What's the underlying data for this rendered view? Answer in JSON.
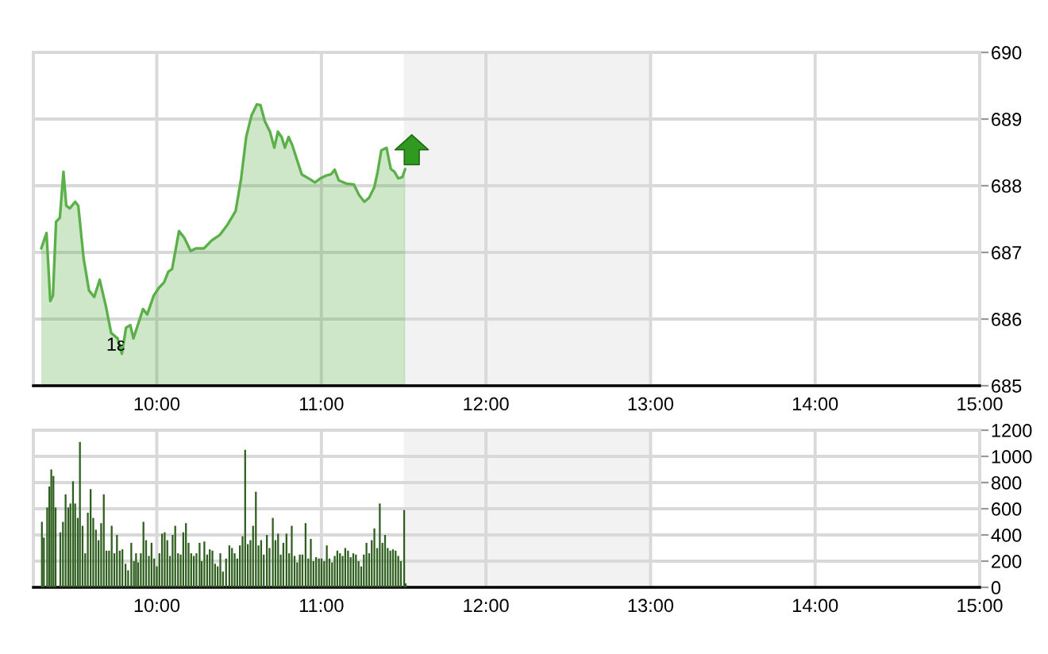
{
  "chart_data": [
    {
      "type": "area",
      "color": "#5cb04a",
      "x": [
        9.298,
        9.33,
        9.353,
        9.369,
        9.388,
        9.411,
        9.433,
        9.45,
        9.472,
        9.504,
        9.523,
        9.556,
        9.588,
        9.62,
        9.653,
        9.691,
        9.723,
        9.762,
        9.788,
        9.813,
        9.839,
        9.858,
        9.89,
        9.916,
        9.942,
        9.981,
        10.013,
        10.044,
        10.07,
        10.093,
        10.135,
        10.167,
        10.206,
        10.237,
        10.286,
        10.334,
        10.382,
        10.431,
        10.479,
        10.512,
        10.543,
        10.575,
        10.608,
        10.63,
        10.656,
        10.688,
        10.714,
        10.736,
        10.759,
        10.778,
        10.801,
        10.823,
        10.849,
        10.881,
        10.929,
        10.961,
        10.994,
        11.026,
        11.058,
        11.081,
        11.106,
        11.154,
        11.197,
        11.229,
        11.261,
        11.29,
        11.322,
        11.342,
        11.364,
        11.396,
        11.422,
        11.444,
        11.467,
        11.492,
        11.509
      ],
      "values": [
        687.06,
        687.29,
        686.27,
        686.35,
        687.46,
        687.52,
        688.21,
        687.7,
        687.66,
        687.76,
        687.7,
        686.9,
        686.43,
        686.33,
        686.59,
        686.19,
        685.79,
        685.71,
        685.48,
        685.87,
        685.91,
        685.71,
        685.95,
        686.15,
        686.07,
        686.35,
        686.47,
        686.55,
        686.71,
        686.75,
        687.32,
        687.22,
        687.02,
        687.06,
        687.06,
        687.18,
        687.26,
        687.42,
        687.62,
        688.1,
        688.73,
        689.05,
        689.22,
        689.21,
        688.97,
        688.81,
        688.57,
        688.81,
        688.73,
        688.57,
        688.73,
        688.61,
        688.41,
        688.17,
        688.1,
        688.05,
        688.11,
        688.15,
        688.17,
        688.24,
        688.08,
        688.03,
        688.02,
        687.86,
        687.76,
        687.82,
        687.98,
        688.21,
        688.53,
        688.57,
        688.25,
        688.21,
        688.11,
        688.13,
        688.25
      ],
      "xlim": [
        9.25,
        15
      ],
      "xticks": [
        {
          "value": 10,
          "label": "10:00"
        },
        {
          "value": 11,
          "label": "11:00"
        },
        {
          "value": 12,
          "label": "12:00"
        },
        {
          "value": 13,
          "label": "13:00"
        },
        {
          "value": 14,
          "label": "14:00"
        },
        {
          "value": 15,
          "label": "15:00"
        }
      ],
      "ylim": [
        685,
        690
      ],
      "yticks": [
        685,
        686,
        687,
        688,
        689,
        690
      ],
      "grid": true,
      "bands": [
        {
          "axis": "x",
          "from": 11.5,
          "to": 13,
          "color": "#f2f2f2"
        }
      ],
      "annotations": [
        {
          "text": "1ε",
          "x": 9.75,
          "y": 685.6
        }
      ]
    },
    {
      "type": "bar",
      "color": "#2f5f1f",
      "x": [
        9.302,
        9.314,
        9.334,
        9.347,
        9.359,
        9.372,
        9.385,
        9.414,
        9.43,
        9.446,
        9.462,
        9.475,
        9.491,
        9.504,
        9.52,
        9.533,
        9.549,
        9.565,
        9.581,
        9.598,
        9.614,
        9.63,
        9.646,
        9.662,
        9.678,
        9.694,
        9.71,
        9.726,
        9.742,
        9.758,
        9.775,
        9.791,
        9.81,
        9.826,
        9.845,
        9.861,
        9.874,
        9.887,
        9.903,
        9.919,
        9.935,
        9.952,
        9.968,
        9.984,
        10.0,
        10.016,
        10.032,
        10.048,
        10.064,
        10.08,
        10.096,
        10.112,
        10.129,
        10.145,
        10.161,
        10.177,
        10.193,
        10.209,
        10.225,
        10.241,
        10.26,
        10.273,
        10.289,
        10.306,
        10.322,
        10.338,
        10.354,
        10.37,
        10.386,
        10.402,
        10.421,
        10.441,
        10.457,
        10.473,
        10.489,
        10.505,
        10.521,
        10.537,
        10.553,
        10.569,
        10.585,
        10.602,
        10.618,
        10.634,
        10.65,
        10.669,
        10.685,
        10.705,
        10.721,
        10.737,
        10.753,
        10.769,
        10.788,
        10.804,
        10.82,
        10.837,
        10.853,
        10.869,
        10.885,
        10.904,
        10.92,
        10.936,
        10.952,
        10.968,
        10.985,
        11.001,
        11.017,
        11.033,
        11.049,
        11.065,
        11.081,
        11.097,
        11.113,
        11.129,
        11.145,
        11.162,
        11.178,
        11.194,
        11.21,
        11.226,
        11.242,
        11.258,
        11.274,
        11.29,
        11.306,
        11.322,
        11.339,
        11.355,
        11.371,
        11.387,
        11.403,
        11.419,
        11.435,
        11.451,
        11.467,
        11.483,
        11.503,
        11.512
      ],
      "values": [
        500,
        380,
        610,
        770,
        900,
        850,
        610,
        420,
        500,
        710,
        610,
        640,
        810,
        640,
        530,
        1110,
        470,
        260,
        570,
        750,
        530,
        440,
        360,
        490,
        710,
        280,
        280,
        470,
        260,
        400,
        280,
        290,
        180,
        130,
        340,
        200,
        260,
        190,
        260,
        500,
        360,
        240,
        340,
        220,
        160,
        260,
        410,
        420,
        360,
        240,
        400,
        470,
        260,
        250,
        420,
        490,
        340,
        260,
        240,
        260,
        340,
        200,
        350,
        250,
        290,
        280,
        180,
        160,
        260,
        120,
        220,
        320,
        300,
        260,
        220,
        320,
        390,
        1050,
        330,
        360,
        470,
        730,
        320,
        360,
        250,
        400,
        300,
        530,
        360,
        410,
        250,
        340,
        410,
        260,
        470,
        240,
        190,
        250,
        250,
        490,
        220,
        370,
        200,
        230,
        220,
        220,
        200,
        320,
        220,
        190,
        240,
        280,
        260,
        240,
        300,
        280,
        230,
        260,
        250,
        200,
        160,
        250,
        340,
        260,
        360,
        450,
        300,
        640,
        340,
        400,
        300,
        280,
        290,
        280,
        240,
        200,
        590,
        30
      ],
      "xlim": [
        9.25,
        15
      ],
      "xticks": [
        {
          "value": 10,
          "label": "10:00"
        },
        {
          "value": 11,
          "label": "11:00"
        },
        {
          "value": 12,
          "label": "12:00"
        },
        {
          "value": 13,
          "label": "13:00"
        },
        {
          "value": 14,
          "label": "14:00"
        },
        {
          "value": 15,
          "label": "15:00"
        }
      ],
      "ylim": [
        0,
        1200
      ],
      "yticks": [
        0,
        200,
        400,
        600,
        800,
        1000,
        1200
      ],
      "grid": true,
      "bands": [
        {
          "axis": "x",
          "from": 11.5,
          "to": 13,
          "color": "#f2f2f2"
        }
      ]
    }
  ]
}
